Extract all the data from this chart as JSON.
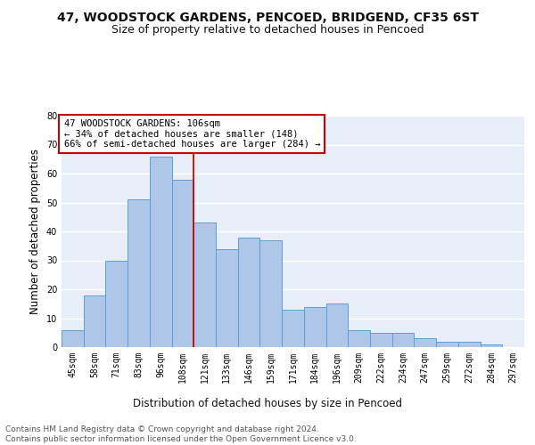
{
  "title1": "47, WOODSTOCK GARDENS, PENCOED, BRIDGEND, CF35 6ST",
  "title2": "Size of property relative to detached houses in Pencoed",
  "xlabel": "Distribution of detached houses by size in Pencoed",
  "ylabel": "Number of detached properties",
  "categories": [
    "45sqm",
    "58sqm",
    "71sqm",
    "83sqm",
    "96sqm",
    "108sqm",
    "121sqm",
    "133sqm",
    "146sqm",
    "159sqm",
    "171sqm",
    "184sqm",
    "196sqm",
    "209sqm",
    "222sqm",
    "234sqm",
    "247sqm",
    "259sqm",
    "272sqm",
    "284sqm",
    "297sqm"
  ],
  "values": [
    6,
    18,
    30,
    51,
    66,
    58,
    43,
    34,
    38,
    37,
    13,
    14,
    15,
    6,
    5,
    5,
    3,
    2,
    2,
    1,
    0
  ],
  "bar_color": "#aec6e8",
  "bar_edge_color": "#5a9fd4",
  "vline_x": 5.5,
  "vline_color": "#cc0000",
  "annotation_text": "47 WOODSTOCK GARDENS: 106sqm\n← 34% of detached houses are smaller (148)\n66% of semi-detached houses are larger (284) →",
  "annotation_box_color": "#ffffff",
  "annotation_box_edge": "#cc0000",
  "ylim": [
    0,
    80
  ],
  "yticks": [
    0,
    10,
    20,
    30,
    40,
    50,
    60,
    70,
    80
  ],
  "background_color": "#e8eef7",
  "grid_color": "#ffffff",
  "footer": "Contains HM Land Registry data © Crown copyright and database right 2024.\nContains public sector information licensed under the Open Government Licence v3.0.",
  "title1_fontsize": 10,
  "title2_fontsize": 9,
  "axis_label_fontsize": 8.5,
  "tick_fontsize": 7,
  "annotation_fontsize": 7.5,
  "footer_fontsize": 6.5
}
